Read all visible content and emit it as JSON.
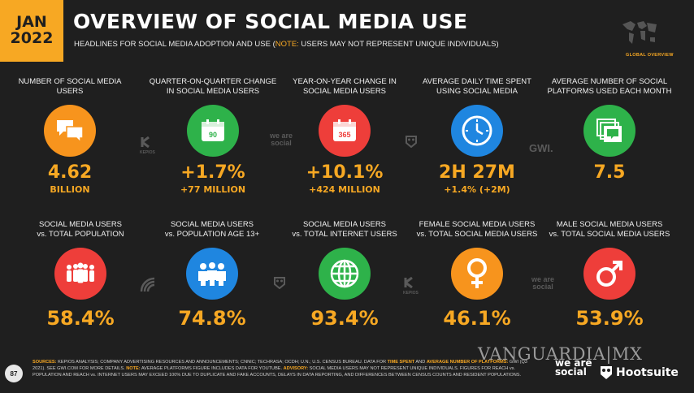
{
  "header": {
    "month": "JAN",
    "year": "2022",
    "title": "OVERVIEW OF SOCIAL MEDIA USE",
    "subtitle_main": "HEADLINES FOR SOCIAL MEDIA ADOPTION AND USE (",
    "subtitle_note": "NOTE:",
    "subtitle_rest": " USERS MAY NOT REPRESENT UNIQUE INDIVIDUALS)",
    "global_label": "GLOBAL OVERVIEW"
  },
  "row1": [
    {
      "label": "NUMBER OF SOCIAL MEDIA USERS",
      "value": "4.62",
      "sub": "BILLION",
      "icon": "chat-bubbles-icon",
      "color": "#f7941d"
    },
    {
      "label": "QUARTER-ON-QUARTER CHANGE IN SOCIAL MEDIA USERS",
      "value": "+1.7%",
      "sub": "+77 MILLION",
      "icon": "calendar-90-icon",
      "icon_text": "90",
      "color": "#2eb24a"
    },
    {
      "label": "YEAR-ON-YEAR CHANGE IN SOCIAL MEDIA USERS",
      "value": "+10.1%",
      "sub": "+424 MILLION",
      "icon": "calendar-365-icon",
      "icon_text": "365",
      "color": "#ee3e3a"
    },
    {
      "label": "AVERAGE DAILY TIME SPENT USING SOCIAL MEDIA",
      "value": "2H 27M",
      "sub": "+1.4% (+2M)",
      "icon": "clock-icon",
      "color": "#1f86e0"
    },
    {
      "label": "AVERAGE NUMBER OF SOCIAL PLATFORMS USED EACH MONTH",
      "value": "7.5",
      "sub": "",
      "icon": "stacked-chat-icon",
      "color": "#2eb24a"
    }
  ],
  "row2": [
    {
      "label": "SOCIAL MEDIA USERS",
      "label2": "vs. TOTAL POPULATION",
      "value": "58.4%",
      "icon": "people-group-icon",
      "color": "#ee3e3a"
    },
    {
      "label": "SOCIAL MEDIA USERS",
      "label2": "vs. POPULATION AGE 13+",
      "value": "74.8%",
      "icon": "adults-icon",
      "color": "#1f86e0"
    },
    {
      "label": "SOCIAL MEDIA USERS",
      "label2": "vs. TOTAL INTERNET USERS",
      "value": "93.4%",
      "icon": "globe-icon",
      "color": "#2eb24a"
    },
    {
      "label": "FEMALE SOCIAL MEDIA USERS",
      "label2": "vs. TOTAL SOCIAL MEDIA USERS",
      "value": "46.1%",
      "icon": "female-symbol-icon",
      "color": "#f7941d"
    },
    {
      "label": "MALE SOCIAL MEDIA USERS",
      "label2": "vs. TOTAL SOCIAL MEDIA USERS",
      "value": "53.9%",
      "icon": "male-symbol-icon",
      "color": "#ee3e3a"
    }
  ],
  "watermarks": {
    "kepios": "KEPIOS",
    "we_are_social": "we are social",
    "gwi": "GWI."
  },
  "footer": {
    "page_number": "87",
    "sources_label": "SOURCES:",
    "sources_text": " KEPIOS ANALYSIS; COMPANY ADVERTISING RESOURCES AND ANNOUNCEMENTS; CNNIC; TECHRASA; OCDH; U.N.; U.S. CENSUS BUREAU. DATA FOR ",
    "time_spent": "TIME SPENT",
    "and": " AND ",
    "avg_platforms": "AVERAGE NUMBER OF PLATFORMS:",
    "gwi_text": " GWI (Q3 2021). SEE GWI.COM FOR MORE DETAILS. ",
    "note_label": "NOTE:",
    "note_text": " AVERAGE PLATFORMS FIGURE INCLUDES DATA FOR YOUTUBE. ",
    "advisory_label": "ADVISORY:",
    "advisory_text": " SOCIAL MEDIA USERS MAY NOT REPRESENT UNIQUE INDIVIDUALS. FIGURES FOR REACH vs. POPULATION AND REACH vs. INTERNET USERS MAY EXCEED 100% DUE TO DUPLICATE AND FAKE ACCOUNTS, DELAYS IN DATA REPORTING, AND DIFFERENCES BETWEEN CENSUS COUNTS AND RESIDENT POPULATIONS.",
    "vanguardia": "VANGUARDIA|MX",
    "we_are_social": "we are social",
    "hootsuite": "Hootsuite"
  }
}
